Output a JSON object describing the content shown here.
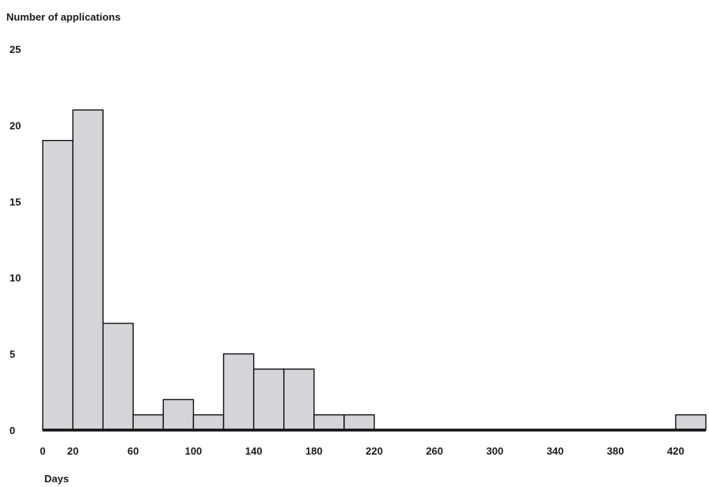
{
  "chart_data": {
    "type": "bar",
    "title": "",
    "ylabel": "Number of applications",
    "xlabel": "Days",
    "ylim": [
      0,
      25
    ],
    "xlim": [
      0,
      440
    ],
    "bin_width": 20,
    "yticks": [
      0,
      5,
      10,
      15,
      20,
      25
    ],
    "xticks": [
      0,
      20,
      60,
      100,
      140,
      180,
      220,
      260,
      300,
      340,
      380,
      420
    ],
    "bins": [
      {
        "x0": 0,
        "x1": 20,
        "value": 19
      },
      {
        "x0": 20,
        "x1": 40,
        "value": 21
      },
      {
        "x0": 40,
        "x1": 60,
        "value": 7
      },
      {
        "x0": 60,
        "x1": 80,
        "value": 1
      },
      {
        "x0": 80,
        "x1": 100,
        "value": 2
      },
      {
        "x0": 100,
        "x1": 120,
        "value": 1
      },
      {
        "x0": 120,
        "x1": 140,
        "value": 5
      },
      {
        "x0": 140,
        "x1": 160,
        "value": 4
      },
      {
        "x0": 160,
        "x1": 180,
        "value": 4
      },
      {
        "x0": 180,
        "x1": 200,
        "value": 1
      },
      {
        "x0": 200,
        "x1": 220,
        "value": 1
      },
      {
        "x0": 420,
        "x1": 440,
        "value": 1
      }
    ],
    "bar_color": "#d3d5d9",
    "edge_color": "#111111",
    "grid": false
  }
}
